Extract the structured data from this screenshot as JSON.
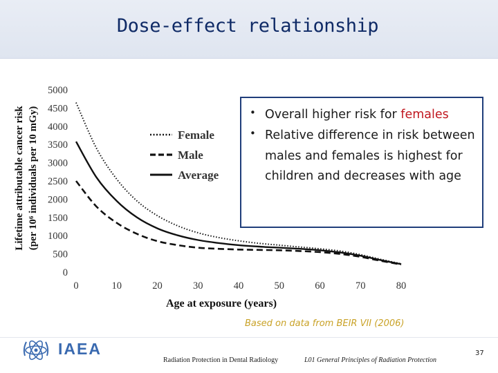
{
  "slide": {
    "title": "Dose-effect relationship",
    "source_note": "Based on data from BEIR VII (2006)",
    "bullets": [
      {
        "text": "Overall higher risk for ",
        "highlight": "females"
      },
      {
        "text": "Relative difference in risk between males and females is highest for children and decreases with age",
        "highlight": ""
      }
    ],
    "bullet_glyph": "•",
    "footer": {
      "logo_text": "IAEA",
      "left": "Radiation Protection in Dental Radiology",
      "middle": "L01 General Principles of Radiation Protection",
      "page": "37"
    },
    "colors": {
      "title": "#0f2a66",
      "highlight": "#c0171f",
      "source": "#c9a227",
      "border": "#1f3d7a"
    }
  },
  "chart_data": {
    "type": "line",
    "title": "",
    "xlabel": "Age at exposure (years)",
    "ylabel_line1": "Lifetime attributable cancer risk",
    "ylabel_line2": "(per 10⁶ individuals per 10 mGy)",
    "xlim": [
      0,
      80
    ],
    "ylim": [
      0,
      5000
    ],
    "x_ticks": [
      "0",
      "10",
      "20",
      "30",
      "40",
      "50",
      "60",
      "70",
      "80"
    ],
    "y_ticks": [
      "0",
      "500",
      "1000",
      "1500",
      "2000",
      "2500",
      "3000",
      "3500",
      "4000",
      "4500",
      "5000"
    ],
    "legend_position": "upper-middle",
    "x": [
      0,
      5,
      10,
      15,
      20,
      25,
      30,
      35,
      40,
      45,
      50,
      55,
      60,
      65,
      70,
      75,
      80
    ],
    "series": [
      {
        "name": "Female",
        "style": "dotted",
        "values": [
          4650,
          3400,
          2550,
          1950,
          1550,
          1270,
          1080,
          950,
          860,
          790,
          740,
          690,
          640,
          580,
          480,
          350,
          230
        ]
      },
      {
        "name": "Male",
        "style": "dashed",
        "values": [
          2500,
          1800,
          1350,
          1050,
          850,
          740,
          670,
          640,
          620,
          610,
          600,
          580,
          550,
          500,
          420,
          310,
          210
        ]
      },
      {
        "name": "Average",
        "style": "solid",
        "values": [
          3580,
          2600,
          1950,
          1500,
          1200,
          1010,
          880,
          800,
          740,
          700,
          670,
          640,
          600,
          540,
          450,
          330,
          220
        ]
      }
    ]
  }
}
